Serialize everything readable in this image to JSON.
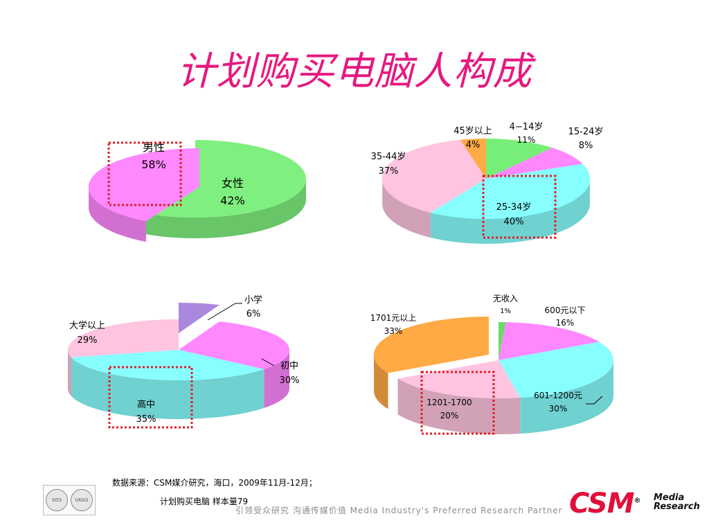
{
  "title": "计划购买电脑人构成",
  "source_line1": "数据来源：CSM媒介研究，海口，2009年11月-12月；",
  "source_line2": "计划购买电脑 样本量79",
  "slogan": "引领受众研究  沟通传媒价值   Media Industry's Preferred Research Partner",
  "logo": {
    "main": "CSM",
    "registered": "®",
    "sub1": "Media",
    "sub2": "Research"
  },
  "certs": [
    "SGS",
    "UKAS"
  ],
  "colors": {
    "title": "#e6197f",
    "highlight": "#dd1f26",
    "logo": "#e0103a"
  },
  "chart_data": [
    {
      "type": "pie",
      "name": "gender",
      "slices": [
        {
          "name": "男性",
          "value": 58,
          "label": "58%",
          "color": "#7ff07f"
        },
        {
          "name": "女性",
          "value": 42,
          "label": "42%",
          "color": "#ff88ff"
        }
      ],
      "highlight": "男性"
    },
    {
      "type": "pie",
      "name": "age",
      "slices": [
        {
          "name": "4−14岁",
          "value": 11,
          "label": "11%",
          "color": "#77ee77"
        },
        {
          "name": "15-24岁",
          "value": 8,
          "label": "8%",
          "color": "#ff88ff"
        },
        {
          "name": "25-34岁",
          "value": 40,
          "label": "40%",
          "color": "#88ffff"
        },
        {
          "name": "35-44岁",
          "value": 37,
          "label": "37%",
          "color": "#ffc4e0"
        },
        {
          "name": "45岁以上",
          "value": 4,
          "label": "4%",
          "color": "#ffaa44"
        }
      ],
      "highlight": "25-34岁"
    },
    {
      "type": "pie",
      "name": "education",
      "slices": [
        {
          "name": "小学",
          "value": 6,
          "label": "6%",
          "color": "#aa88dd"
        },
        {
          "name": "初中",
          "value": 30,
          "label": "30%",
          "color": "#ff88ff"
        },
        {
          "name": "高中",
          "value": 35,
          "label": "35%",
          "color": "#88ffff"
        },
        {
          "name": "大学以上",
          "value": 29,
          "label": "29%",
          "color": "#ffc4e0"
        }
      ],
      "highlight": "高中"
    },
    {
      "type": "pie",
      "name": "income",
      "slices": [
        {
          "name": "无收入",
          "value": 1,
          "label": "1%",
          "color": "#66dd66"
        },
        {
          "name": "600元以下",
          "value": 16,
          "label": "16%",
          "color": "#ff88ff"
        },
        {
          "name": "601-1200元",
          "value": 30,
          "label": "30%",
          "color": "#88ffff"
        },
        {
          "name": "1201-1700",
          "value": 20,
          "label": "20%",
          "color": "#ffc4e0"
        },
        {
          "name": "1701元以上",
          "value": 33,
          "label": "33%",
          "color": "#ffaa44"
        }
      ],
      "highlight": "1201-1700"
    }
  ]
}
